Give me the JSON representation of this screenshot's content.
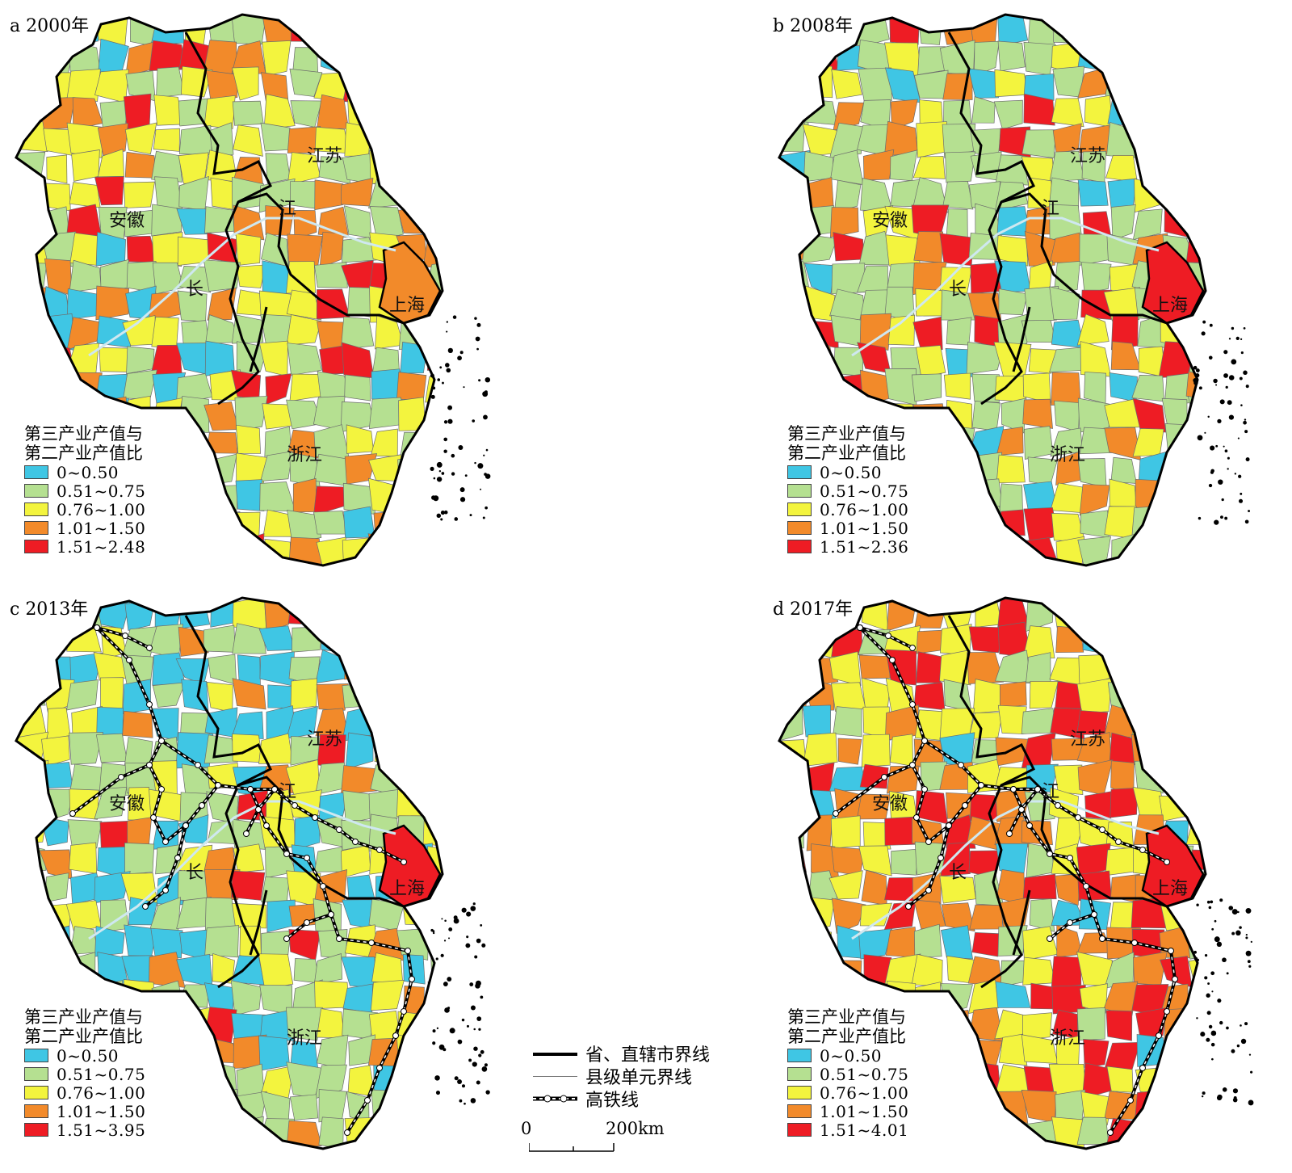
{
  "colors": {
    "c1": "#3fc6e4",
    "c2": "#b5e091",
    "c3": "#f3f43e",
    "c4": "#f28a2a",
    "c5": "#ee1c24"
  },
  "panels": [
    {
      "title": "a 2000年",
      "legend_title_1": "第三产业产值与",
      "legend_title_2": "第二产业产值比",
      "ranges": [
        "0~0.50",
        "0.51~0.75",
        "0.76~1.00",
        "1.01~1.50",
        "1.51~2.48"
      ],
      "shanghai_class": 4,
      "has_hsr": false
    },
    {
      "title": "b 2008年",
      "legend_title_1": "第三产业产值与",
      "legend_title_2": "第二产业产值比",
      "ranges": [
        "0~0.50",
        "0.51~0.75",
        "0.76~1.00",
        "1.01~1.50",
        "1.51~2.36"
      ],
      "shanghai_class": 5,
      "has_hsr": false
    },
    {
      "title": "c 2013年",
      "legend_title_1": "第三产业产值与",
      "legend_title_2": "第二产业产值比",
      "ranges": [
        "0~0.50",
        "0.51~0.75",
        "0.76~1.00",
        "1.01~1.50",
        "1.51~3.95"
      ],
      "shanghai_class": 5,
      "has_hsr": true
    },
    {
      "title": "d 2017年",
      "legend_title_1": "第三产业产值与",
      "legend_title_2": "第二产业产值比",
      "ranges": [
        "0~0.50",
        "0.51~0.75",
        "0.76~1.00",
        "1.01~1.50",
        "1.51~4.01"
      ],
      "shanghai_class": 5,
      "has_hsr": true
    }
  ],
  "map_labels": {
    "jiangsu": "江苏",
    "anhui": "安徽",
    "zhejiang": "浙江",
    "shanghai": "上海",
    "yangtze_1": "长",
    "yangtze_2": "江"
  },
  "key": {
    "boundary_province": "省、直辖市界线",
    "boundary_county": "县级单元界线",
    "hsr": "高铁线"
  },
  "scale": {
    "start": "0",
    "end": "200km"
  }
}
